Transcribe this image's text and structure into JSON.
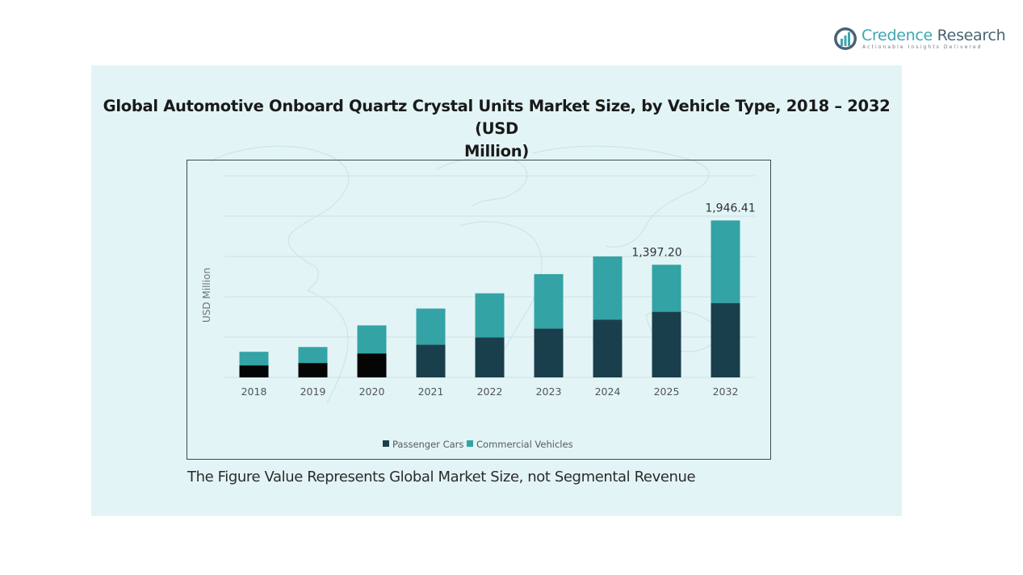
{
  "brand": {
    "name_part1": "Credence",
    "name_part2": " Research",
    "tagline": "Actionable Insights Delivered"
  },
  "footnote": "The Figure Value Represents Global Market Size, not Segmental Revenue",
  "colors": {
    "passenger_cars": "#1a3f4c",
    "passenger_cars_early": "#050505",
    "commercial_vehicles": "#33a3a5",
    "panel_background": "#e3f4f6",
    "gridline": "#cfe0e3"
  },
  "chart_data": {
    "type": "bar",
    "stacked": true,
    "title": "Global Automotive Onboard Quartz Crystal Units Market Size, by Vehicle Type, 2018 – 2032 (USD Million)",
    "title_lines": [
      "Global Automotive Onboard Quartz Crystal Units Market Size, by Vehicle Type, 2018 – 2032 (USD",
      "Million)"
    ],
    "xlabel": "",
    "ylabel": "USD Million",
    "ylim": [
      0,
      2500
    ],
    "grid": true,
    "y_tick_labels_visible": false,
    "categories": [
      "2018",
      "2019",
      "2020",
      "2021",
      "2022",
      "2023",
      "2024",
      "2025",
      "2032"
    ],
    "series": [
      {
        "name": "Passenger Cars",
        "values": [
          149,
          179,
          298,
          407,
          497,
          606,
          715,
          814,
          923
        ]
      },
      {
        "name": "Commercial Vehicles",
        "values": [
          169,
          198,
          347,
          447,
          546,
          675,
          785,
          583,
          1023.41
        ]
      }
    ],
    "totals": [
      318,
      377,
      645,
      854,
      1043,
      1281,
      1500,
      1397.2,
      1946.41
    ],
    "data_labels": [
      {
        "category": "2025",
        "text": "1,397.20"
      },
      {
        "category": "2032",
        "text": "1,946.41"
      }
    ],
    "legend": {
      "position": "bottom",
      "entries": [
        "Passenger Cars",
        "Commercial Vehicles"
      ]
    }
  }
}
